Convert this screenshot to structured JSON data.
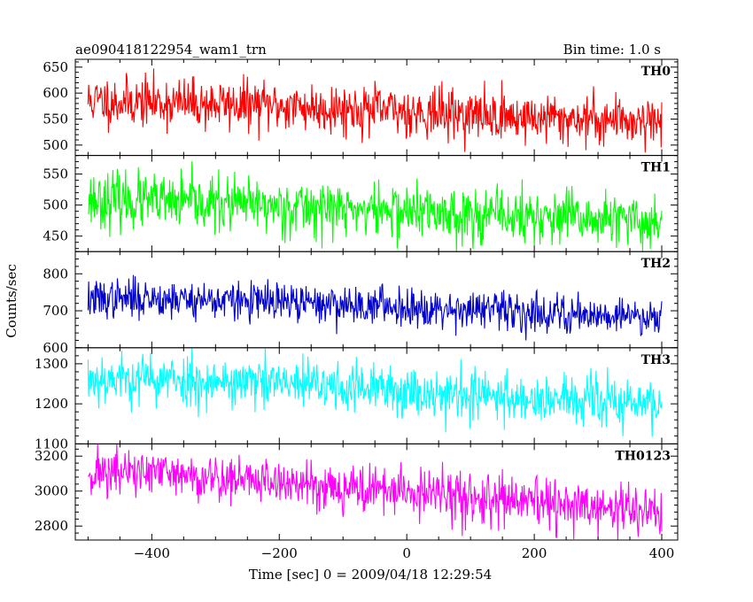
{
  "chart_data": {
    "type": "line",
    "title_left": "ae090418122954_wam1_trn",
    "title_right": "Bin time: 1.0 s",
    "xlabel": "Time [sec] 0 = 2009/04/18 12:29:54",
    "ylabel": "Counts/sec",
    "xlim": [
      -520,
      425
    ],
    "x_data_range": [
      -500,
      400
    ],
    "x_ticks": [
      -400,
      -200,
      0,
      200,
      400
    ],
    "grid": false,
    "panels": [
      {
        "name": "TH0",
        "color": "#ff0000",
        "ylim": [
          480,
          665
        ],
        "y_ticks": [
          500,
          550,
          600,
          650
        ],
        "trend": [
          [
            -500,
            585
          ],
          [
            -400,
            582
          ],
          [
            -200,
            575
          ],
          [
            0,
            565
          ],
          [
            200,
            552
          ],
          [
            400,
            548
          ]
        ],
        "noise": 24,
        "seed": 11
      },
      {
        "name": "TH1",
        "color": "#00ff00",
        "ylim": [
          425,
          580
        ],
        "y_ticks": [
          450,
          500,
          550
        ],
        "trend": [
          [
            -500,
            510
          ],
          [
            -400,
            505
          ],
          [
            -200,
            498
          ],
          [
            0,
            490
          ],
          [
            200,
            480
          ],
          [
            400,
            472
          ]
        ],
        "noise": 22,
        "seed": 23
      },
      {
        "name": "TH2",
        "color": "#0000cc",
        "ylim": [
          600,
          860
        ],
        "y_ticks": [
          600,
          700,
          800
        ],
        "trend": [
          [
            -500,
            730
          ],
          [
            -400,
            735
          ],
          [
            -200,
            722
          ],
          [
            0,
            712
          ],
          [
            200,
            695
          ],
          [
            400,
            685
          ]
        ],
        "noise": 26,
        "seed": 37
      },
      {
        "name": "TH3",
        "color": "#00ffff",
        "ylim": [
          1100,
          1340
        ],
        "y_ticks": [
          1100,
          1200,
          1300
        ],
        "trend": [
          [
            -500,
            1265
          ],
          [
            -400,
            1262
          ],
          [
            -200,
            1250
          ],
          [
            0,
            1232
          ],
          [
            200,
            1212
          ],
          [
            400,
            1198
          ]
        ],
        "noise": 32,
        "seed": 53
      },
      {
        "name": "TH0123",
        "color": "#ff00ff",
        "ylim": [
          2720,
          3270
        ],
        "y_ticks": [
          2800,
          3000,
          3200
        ],
        "y_tick_labels": [
          "2800",
          "3000",
          "3200"
        ],
        "trend": [
          [
            -500,
            3110
          ],
          [
            -400,
            3100
          ],
          [
            -200,
            3050
          ],
          [
            0,
            2995
          ],
          [
            200,
            2925
          ],
          [
            400,
            2880
          ]
        ],
        "noise": 70,
        "seed": 71
      }
    ]
  }
}
